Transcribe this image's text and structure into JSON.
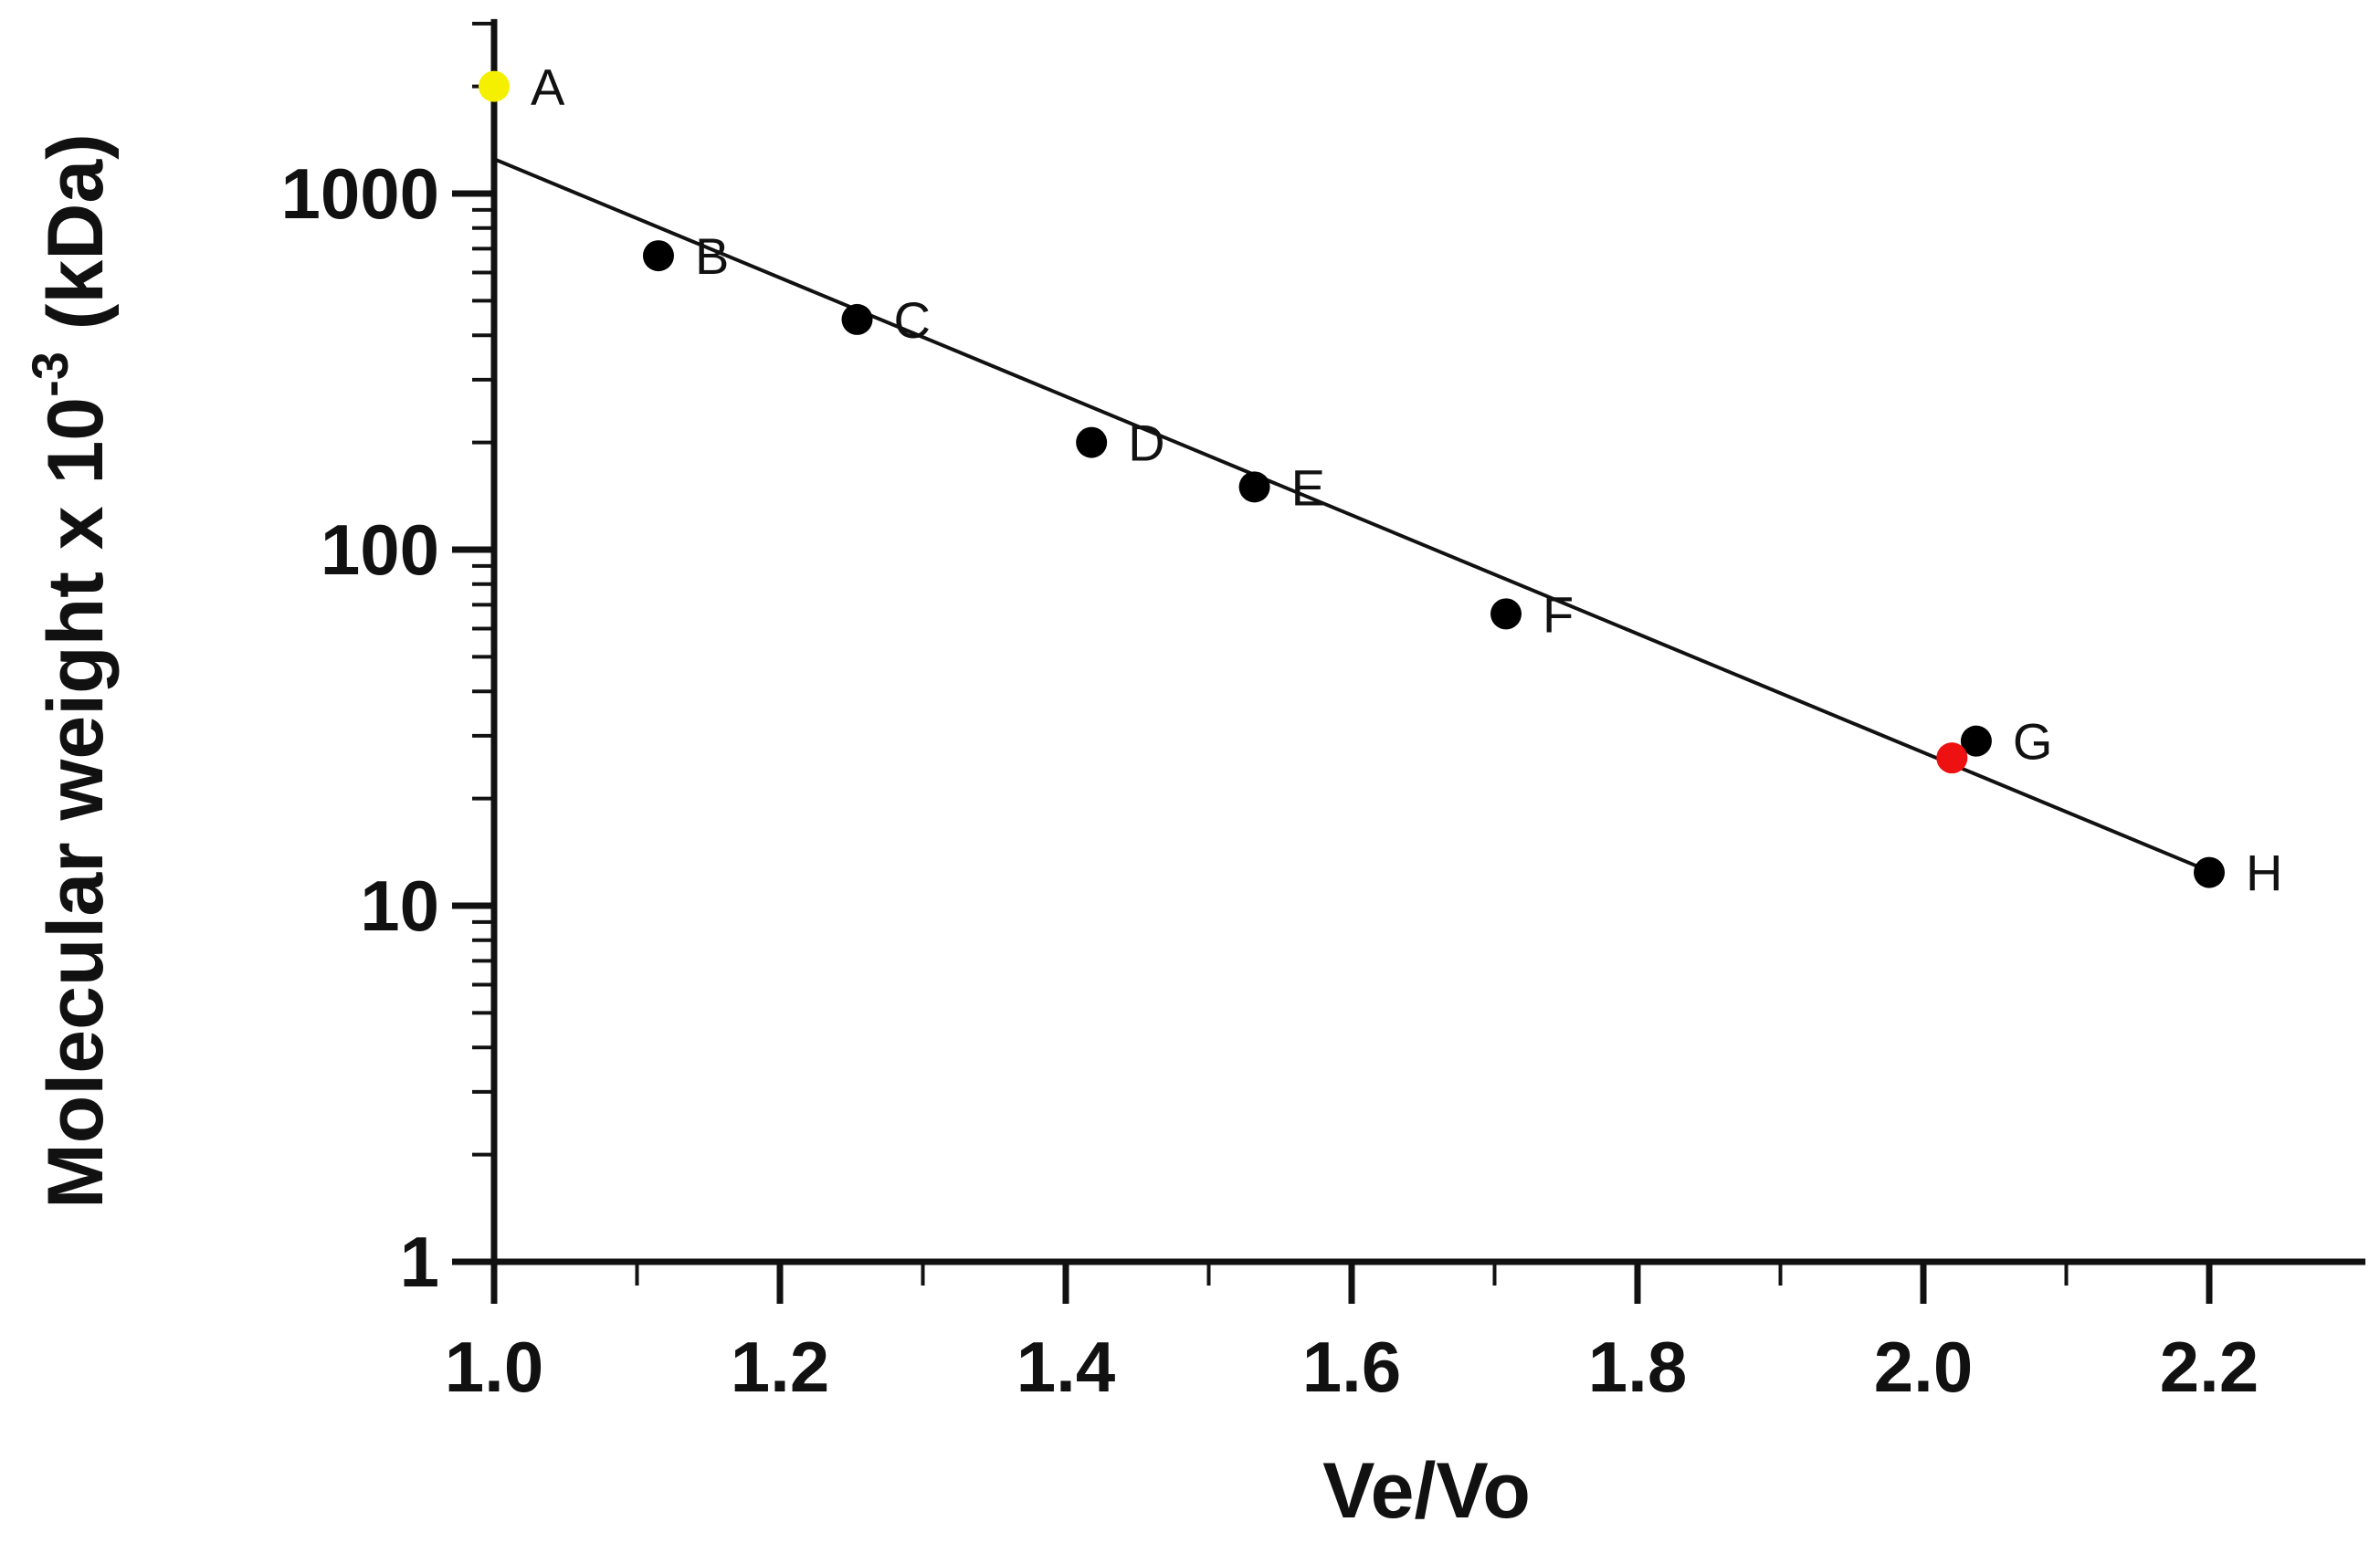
{
  "chart_data": {
    "type": "scatter",
    "title": "",
    "xlabel": "Ve/Vo",
    "ylabel": {
      "prefix": "Molecular weight x 10",
      "exponent": "-3",
      "suffix": " (kDa)"
    },
    "xlim": [
      1.0,
      2.25
    ],
    "ylim": [
      1,
      3000
    ],
    "yscale": "log",
    "x_ticks": [
      "1.0",
      "1.2",
      "1.4",
      "1.6",
      "1.8",
      "2.0",
      "2.2"
    ],
    "y_ticks": [
      "1",
      "10",
      "100",
      "1000"
    ],
    "points": [
      {
        "label": "A",
        "x": 1.0,
        "y": 2000,
        "color": "#f5ef00"
      },
      {
        "label": "B",
        "x": 1.115,
        "y": 669,
        "color": "#000000"
      },
      {
        "label": "C",
        "x": 1.254,
        "y": 443,
        "color": "#000000"
      },
      {
        "label": "D",
        "x": 1.418,
        "y": 200,
        "color": "#000000"
      },
      {
        "label": "E",
        "x": 1.532,
        "y": 150,
        "color": "#000000"
      },
      {
        "label": "F",
        "x": 1.708,
        "y": 66,
        "color": "#000000"
      },
      {
        "label": "G",
        "x": 2.037,
        "y": 29,
        "color": "#000000"
      },
      {
        "label": "H",
        "x": 2.2,
        "y": 12.4,
        "color": "#000000"
      }
    ],
    "unknown_point": {
      "x": 2.02,
      "y": 26,
      "color": "#ee1111"
    },
    "fit_line": {
      "x": [
        1.0,
        2.2
      ],
      "y": [
        1250,
        12.5
      ]
    },
    "grid": false,
    "legend": "none"
  }
}
